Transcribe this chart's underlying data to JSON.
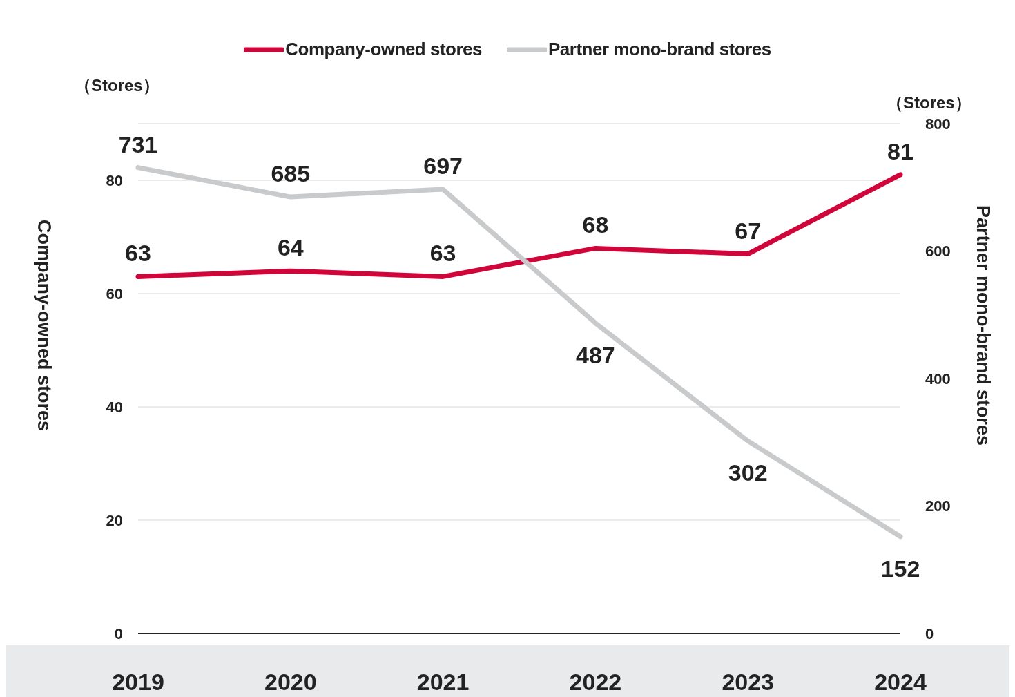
{
  "chart_data": {
    "type": "line",
    "categories": [
      "2019",
      "2020",
      "2021",
      "2022",
      "2023",
      "2024"
    ],
    "series": [
      {
        "name": "Company-owned stores",
        "color": "#d0063a",
        "values": [
          63,
          64,
          63,
          68,
          67,
          81
        ]
      },
      {
        "name": "Partner mono-brand stores",
        "color": "#c8cacc",
        "values": [
          731,
          685,
          697,
          487,
          302,
          152
        ],
        "axis": "y2"
      }
    ],
    "ylabel": "Company-owned stores",
    "y2label": "Partner mono-brand stores",
    "ylim": [
      0,
      90
    ],
    "yticks": [
      0,
      20,
      40,
      60,
      80
    ],
    "y2lim": [
      0,
      800
    ],
    "y2ticks": [
      0,
      200,
      400,
      600,
      800
    ],
    "annotations": [
      "（Stores）",
      "（Stores）"
    ],
    "data_labels": true,
    "grid": "y",
    "legend": "top",
    "marker": "none",
    "line_style": "solid"
  }
}
